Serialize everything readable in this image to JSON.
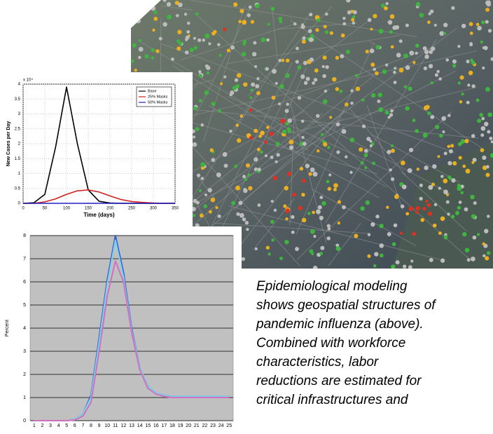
{
  "chart_data": [
    {
      "type": "line",
      "y_multiplier": "x 10⁴",
      "xlabel": "Time (days)",
      "ylabel": "New Cases per Day",
      "x": [
        0,
        25,
        50,
        75,
        100,
        125,
        150,
        175,
        200,
        225,
        250,
        275,
        300,
        325,
        350
      ],
      "series": [
        {
          "name": "Base",
          "color": "#000000",
          "values": [
            0,
            0.02,
            0.3,
            1.9,
            3.9,
            2.0,
            0.45,
            0.07,
            0.01,
            0,
            0,
            0,
            0,
            0,
            0
          ]
        },
        {
          "name": "25% Masks",
          "color": "#d02020",
          "values": [
            0,
            0,
            0.05,
            0.15,
            0.3,
            0.42,
            0.45,
            0.38,
            0.25,
            0.13,
            0.06,
            0.03,
            0.01,
            0,
            0
          ]
        },
        {
          "name": "50% Masks",
          "color": "#2020c0",
          "values": [
            0,
            0,
            0,
            0,
            0,
            0,
            0,
            0,
            0,
            0,
            0,
            0,
            0,
            0,
            0
          ]
        }
      ],
      "xlim": [
        0,
        350
      ],
      "xticks": [
        0,
        50,
        100,
        150,
        200,
        250,
        300,
        350
      ],
      "ylim": [
        0,
        4
      ],
      "yticks": [
        0,
        0.5,
        1,
        1.5,
        2,
        2.5,
        3,
        3.5,
        4
      ],
      "grid": true,
      "legend": "upper-right"
    },
    {
      "type": "line",
      "ylabel": "Percent",
      "categories": [
        "1",
        "2",
        "3",
        "4",
        "5",
        "6",
        "7",
        "8",
        "9",
        "10",
        "11",
        "12",
        "13",
        "14",
        "15",
        "16",
        "17",
        "18",
        "19",
        "20",
        "21",
        "22",
        "23",
        "24",
        "25"
      ],
      "series": [
        {
          "color": "#2f5fd0",
          "values": [
            0,
            0,
            0,
            0,
            0,
            0.05,
            0.3,
            1.1,
            3.6,
            6.1,
            8.0,
            6.4,
            4.0,
            2.3,
            1.5,
            1.2,
            1.1,
            1.05,
            1.05,
            1.05,
            1.05,
            1.05,
            1.05,
            1.05,
            1.05
          ]
        },
        {
          "color": "#80d0e8",
          "values": [
            0,
            0,
            0,
            0,
            0,
            0.05,
            0.3,
            1.0,
            3.4,
            5.9,
            7.8,
            6.2,
            3.9,
            2.3,
            1.5,
            1.2,
            1.1,
            1.05,
            1.05,
            1.05,
            1.05,
            1.05,
            1.05,
            1.05,
            1.05
          ]
        },
        {
          "color": "#d070c0",
          "values": [
            0,
            0,
            0,
            0,
            0,
            0.03,
            0.2,
            0.8,
            3.0,
            5.4,
            6.9,
            6.0,
            3.8,
            2.2,
            1.4,
            1.15,
            1.05,
            1.0,
            1.0,
            1.0,
            1.0,
            1.0,
            1.0,
            1.0,
            1.0
          ]
        }
      ],
      "ylim": [
        0,
        8
      ],
      "yticks": [
        0,
        1,
        2,
        3,
        4,
        5,
        6,
        7,
        8
      ],
      "grid": true
    }
  ],
  "caption": {
    "lines": [
      "Epidemiological modeling",
      "shows geospatial structures of",
      "pandemic influenza (above).",
      "Combined with workforce",
      "characteristics, labor",
      "reductions are estimated for",
      "critical  infrastructures and"
    ]
  }
}
